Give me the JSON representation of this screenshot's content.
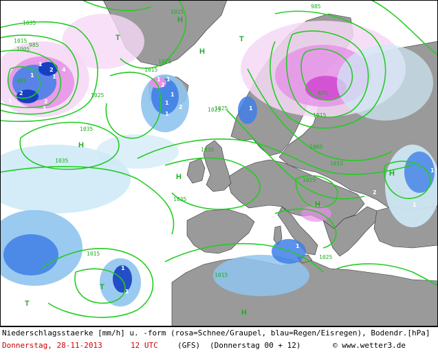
{
  "legend": "Niederschlagsstaerke [mm/h] u. -form (rosa=Schnee/Graupel, blau=Regen/Eisregen), Bodendr.[hPa]",
  "date": "Donnerstag, 28-11-2013",
  "time": "12 UTC",
  "model": "(GFS)",
  "run": "(Donnerstag 00 + 12)",
  "source": "© www.wetter3.de",
  "colors": {
    "land": "#9a9a9a",
    "sea": "#ffffff",
    "isobar": "#22cc22",
    "rain_light": "#cfeaf7",
    "rain_mid": "#8fc4ee",
    "rain_heavy": "#3f7fe6",
    "rain_strong": "#1640c0",
    "snow_light": "#f6d8f6",
    "snow_mid": "#e590e6",
    "snow_heavy": "#cc33cc"
  },
  "pressure_centers": [
    {
      "label": "H",
      "kind": "high"
    },
    {
      "label": "H",
      "kind": "high"
    },
    {
      "label": "H",
      "kind": "high"
    },
    {
      "label": "H",
      "kind": "high"
    },
    {
      "label": "H",
      "kind": "high"
    },
    {
      "label": "H",
      "kind": "high"
    },
    {
      "label": "H",
      "kind": "high"
    },
    {
      "label": "T",
      "kind": "low"
    },
    {
      "label": "T",
      "kind": "low"
    },
    {
      "label": "T",
      "kind": "low"
    },
    {
      "label": "T",
      "kind": "low"
    }
  ],
  "isobar_labels": [
    "1035",
    "1025",
    "1015",
    "1005",
    "995",
    "985",
    "1035",
    "1025",
    "1015",
    "1035",
    "1025",
    "1035",
    "1025",
    "1015",
    "1005",
    "985",
    "975",
    "1015",
    "1025",
    "1025",
    "1015",
    "1025",
    "1035",
    "1015"
  ],
  "rate_labels": [
    "1",
    "2",
    "4",
    "1",
    "2",
    "1",
    "2",
    "1",
    "1",
    "1",
    "2",
    "1",
    "1",
    "1",
    "1",
    "2",
    "1",
    "1",
    "1",
    "1",
    "2",
    "1",
    "1"
  ]
}
